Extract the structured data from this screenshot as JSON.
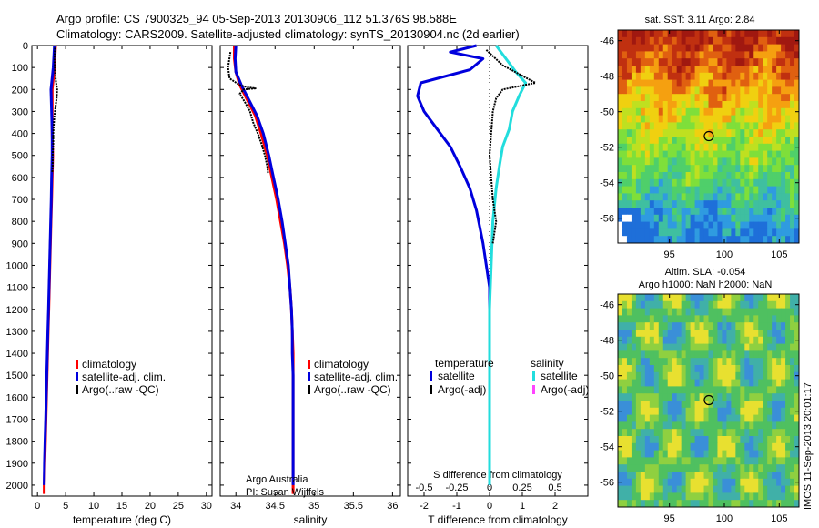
{
  "header": {
    "line1": "Argo profile: CS 7900325_94 05-Sep-2013 20130906_112 51.376S 98.588E",
    "line2": "Climatology: CARS2009. Satellite-adjusted climatology: synTS_20130904.nc (2d earlier)"
  },
  "colors": {
    "climatology": "#ff0000",
    "satellite": "#0000dd",
    "argo": "#000000",
    "salinity_satellite": "#22dddd",
    "salinity_argo": "#ff44ff"
  },
  "depth_ticks": [
    0,
    100,
    200,
    300,
    400,
    500,
    600,
    700,
    800,
    900,
    1000,
    1100,
    1200,
    1300,
    1400,
    1500,
    1600,
    1700,
    1800,
    1900,
    2000
  ],
  "chart_data": [
    {
      "id": "temperature",
      "type": "line",
      "xlabel": "temperature (deg C)",
      "xlim": [
        -1,
        31
      ],
      "ylim": [
        2050,
        0
      ],
      "xticks": [
        0,
        5,
        10,
        15,
        20,
        25,
        30
      ],
      "xtick_labels": [
        "0",
        "5",
        "10",
        "15",
        "20",
        "25",
        "30"
      ],
      "legend": {
        "placement": "lower-center",
        "entries": [
          {
            "label": "climatology",
            "color": "#ff0000"
          },
          {
            "label": "satellite-adj. clim.",
            "color": "#0000dd"
          },
          {
            "label": "Argo(..raw -QC)",
            "color": "#000000"
          }
        ]
      },
      "series": [
        {
          "key": "clim",
          "color": "#ff0000",
          "points": [
            [
              3.2,
              0
            ],
            [
              3.0,
              100
            ],
            [
              2.6,
              200
            ],
            [
              2.6,
              300
            ],
            [
              2.6,
              400
            ],
            [
              2.7,
              500
            ],
            [
              2.6,
              600
            ],
            [
              2.5,
              700
            ],
            [
              2.4,
              800
            ],
            [
              2.3,
              900
            ],
            [
              2.2,
              1000
            ],
            [
              2.1,
              1100
            ],
            [
              2.0,
              1200
            ],
            [
              1.9,
              1300
            ],
            [
              1.8,
              1400
            ],
            [
              1.7,
              1500
            ],
            [
              1.6,
              1600
            ],
            [
              1.5,
              1700
            ],
            [
              1.4,
              1800
            ],
            [
              1.3,
              1900
            ],
            [
              1.2,
              2000
            ],
            [
              1.2,
              2040
            ]
          ]
        },
        {
          "key": "sat",
          "color": "#0000dd",
          "points": [
            [
              3.0,
              0
            ],
            [
              2.8,
              100
            ],
            [
              2.4,
              200
            ],
            [
              2.5,
              300
            ],
            [
              2.6,
              400
            ],
            [
              2.6,
              500
            ],
            [
              2.5,
              600
            ],
            [
              2.45,
              700
            ],
            [
              2.35,
              800
            ],
            [
              2.25,
              900
            ],
            [
              2.15,
              1000
            ],
            [
              2.05,
              1100
            ],
            [
              1.95,
              1200
            ],
            [
              1.85,
              1300
            ],
            [
              1.75,
              1400
            ],
            [
              1.65,
              1500
            ],
            [
              1.55,
              1600
            ],
            [
              1.45,
              1700
            ],
            [
              1.35,
              1800
            ],
            [
              1.25,
              1900
            ],
            [
              1.2,
              2000
            ]
          ]
        },
        {
          "key": "argo",
          "color": "#000000",
          "points": [
            [
              3.1,
              10
            ],
            [
              3.0,
              60
            ],
            [
              3.1,
              120
            ],
            [
              3.3,
              170
            ],
            [
              3.5,
              200
            ],
            [
              3.4,
              240
            ],
            [
              3.2,
              280
            ],
            [
              3.0,
              320
            ],
            [
              2.9,
              360
            ],
            [
              2.8,
              400
            ],
            [
              2.8,
              450
            ],
            [
              2.7,
              500
            ],
            [
              2.7,
              550
            ],
            [
              2.6,
              580
            ]
          ]
        }
      ]
    },
    {
      "id": "salinity",
      "type": "line",
      "xlabel": "salinity",
      "xlim": [
        33.8,
        36.1
      ],
      "ylim": [
        2050,
        0
      ],
      "xticks": [
        34,
        34.5,
        35,
        35.5,
        36
      ],
      "xtick_labels": [
        "34",
        "34.5",
        "35",
        "35.5",
        "36"
      ],
      "legend": {
        "placement": "lower-right",
        "entries": [
          {
            "label": "climatology",
            "color": "#ff0000"
          },
          {
            "label": "satellite-adj. clim.",
            "color": "#0000dd"
          },
          {
            "label": "Argo(..raw -QC)",
            "color": "#000000"
          }
        ]
      },
      "annotation": [
        "Argo Australia",
        "PI: Susan Wijffels"
      ],
      "series": [
        {
          "key": "clim",
          "color": "#ff0000",
          "points": [
            [
              33.98,
              0
            ],
            [
              33.98,
              60
            ],
            [
              34.0,
              120
            ],
            [
              34.05,
              180
            ],
            [
              34.15,
              250
            ],
            [
              34.25,
              320
            ],
            [
              34.32,
              400
            ],
            [
              34.4,
              500
            ],
            [
              34.46,
              600
            ],
            [
              34.52,
              700
            ],
            [
              34.57,
              800
            ],
            [
              34.62,
              900
            ],
            [
              34.66,
              1000
            ],
            [
              34.69,
              1100
            ],
            [
              34.71,
              1200
            ],
            [
              34.72,
              1300
            ],
            [
              34.73,
              1400
            ],
            [
              34.73,
              1500
            ],
            [
              34.73,
              1600
            ],
            [
              34.73,
              1700
            ],
            [
              34.73,
              1800
            ],
            [
              34.73,
              1900
            ],
            [
              34.73,
              2000
            ],
            [
              34.73,
              2040
            ]
          ]
        },
        {
          "key": "sat",
          "color": "#0000dd",
          "points": [
            [
              34.0,
              0
            ],
            [
              33.99,
              60
            ],
            [
              34.0,
              120
            ],
            [
              34.07,
              180
            ],
            [
              34.17,
              250
            ],
            [
              34.27,
              320
            ],
            [
              34.35,
              400
            ],
            [
              34.42,
              500
            ],
            [
              34.48,
              600
            ],
            [
              34.54,
              700
            ],
            [
              34.59,
              800
            ],
            [
              34.63,
              900
            ],
            [
              34.67,
              1000
            ],
            [
              34.69,
              1100
            ],
            [
              34.71,
              1200
            ],
            [
              34.72,
              1300
            ],
            [
              34.72,
              1400
            ],
            [
              34.73,
              1500
            ],
            [
              34.73,
              1600
            ],
            [
              34.73,
              1700
            ],
            [
              34.73,
              1800
            ],
            [
              34.73,
              1900
            ],
            [
              34.73,
              2000
            ]
          ]
        },
        {
          "key": "argo",
          "color": "#000000",
          "points": [
            [
              33.93,
              30
            ],
            [
              33.9,
              100
            ],
            [
              33.92,
              150
            ],
            [
              34.05,
              180
            ],
            [
              34.15,
              190
            ],
            [
              34.25,
              195
            ],
            [
              34.1,
              200
            ],
            [
              34.05,
              220
            ],
            [
              34.12,
              260
            ],
            [
              34.18,
              300
            ],
            [
              34.22,
              350
            ],
            [
              34.28,
              400
            ],
            [
              34.33,
              450
            ],
            [
              34.37,
              500
            ],
            [
              34.4,
              550
            ],
            [
              34.41,
              580
            ]
          ]
        }
      ]
    },
    {
      "id": "difference",
      "type": "line",
      "xlabel": "T difference from climatology",
      "xlabel_top": "S difference from climatology",
      "xlim": [
        -2.5,
        3.0
      ],
      "ylim": [
        2050,
        0
      ],
      "xticks": [
        -2,
        -1,
        0,
        1,
        2
      ],
      "xtick_labels": [
        "-2",
        "-1",
        "0",
        "1",
        "2"
      ],
      "top_ticks": [
        -0.5,
        -0.25,
        0,
        0.25,
        0.5
      ],
      "top_tick_labels": [
        "-0.5",
        "-0.25",
        "0",
        "0.25",
        "0.5"
      ],
      "legend": {
        "placement": "lower-center",
        "headers": [
          "temperature",
          "salinity"
        ],
        "entries": [
          {
            "label": "satellite",
            "color": "#0000dd",
            "col": 0
          },
          {
            "label": "Argo(-adj)",
            "color": "#000000",
            "col": 0
          },
          {
            "label": "satellite",
            "color": "#22dddd",
            "col": 1
          },
          {
            "label": "Argo(-adj)",
            "color": "#ff44ff",
            "col": 1
          }
        ]
      },
      "series": [
        {
          "key": "t_sat",
          "color": "#0000dd",
          "points": [
            [
              -0.4,
              0
            ],
            [
              -1.2,
              30
            ],
            [
              -0.2,
              60
            ],
            [
              -0.6,
              110
            ],
            [
              -2.1,
              170
            ],
            [
              -2.2,
              230
            ],
            [
              -2.0,
              300
            ],
            [
              -1.6,
              380
            ],
            [
              -1.2,
              460
            ],
            [
              -0.9,
              550
            ],
            [
              -0.6,
              650
            ],
            [
              -0.4,
              750
            ],
            [
              -0.2,
              900
            ],
            [
              -0.1,
              1000
            ],
            [
              0.0,
              1100
            ],
            [
              0.0,
              1300
            ],
            [
              0.0,
              1600
            ],
            [
              0.0,
              2000
            ]
          ]
        },
        {
          "key": "s_sat",
          "color": "#22dddd",
          "points": [
            [
              0.2,
              0
            ],
            [
              0.5,
              60
            ],
            [
              0.8,
              120
            ],
            [
              1.1,
              170
            ],
            [
              0.9,
              230
            ],
            [
              0.7,
              300
            ],
            [
              0.6,
              380
            ],
            [
              0.4,
              460
            ],
            [
              0.3,
              550
            ],
            [
              0.2,
              650
            ],
            [
              0.1,
              800
            ],
            [
              0.05,
              1000
            ],
            [
              0.0,
              1200
            ],
            [
              0.0,
              1500
            ],
            [
              0.0,
              2000
            ]
          ]
        },
        {
          "key": "t_argo",
          "color": "#000000",
          "points": [
            [
              -0.1,
              20
            ],
            [
              0.4,
              90
            ],
            [
              1.4,
              170
            ],
            [
              0.4,
              200
            ],
            [
              0.2,
              240
            ],
            [
              0.1,
              300
            ],
            [
              0.05,
              400
            ],
            [
              0.0,
              500
            ],
            [
              0.05,
              600
            ],
            [
              0.1,
              700
            ],
            [
              0.2,
              800
            ],
            [
              0.1,
              900
            ]
          ]
        },
        {
          "key": "s_argo",
          "color": "#ff44ff",
          "points": []
        }
      ]
    }
  ],
  "map_sst": {
    "title": "sat. SST: 3.11  Argo: 2.84",
    "lat_ticks": [
      "-46",
      "-48",
      "-50",
      "-52",
      "-54",
      "-56"
    ],
    "lon_ticks": [
      "95",
      "100",
      "105"
    ],
    "lat_range": [
      -57.4,
      -45.4
    ],
    "lon_range": [
      90.3,
      106.8
    ],
    "marker": {
      "lat": -51.376,
      "lon": 98.588
    }
  },
  "map_sla": {
    "title_line1": "Altim. SLA: -0.054",
    "title_line2": "Argo h1000: NaN h2000: NaN",
    "lat_ticks": [
      "-46",
      "-48",
      "-50",
      "-52",
      "-54",
      "-56"
    ],
    "lon_ticks": [
      "95",
      "100",
      "105"
    ],
    "lat_range": [
      -57.4,
      -45.4
    ],
    "lon_range": [
      90.3,
      106.8
    ],
    "marker": {
      "lat": -51.376,
      "lon": 98.588
    }
  },
  "credit": "IMOS 11-Sep-2013 20:01:17"
}
